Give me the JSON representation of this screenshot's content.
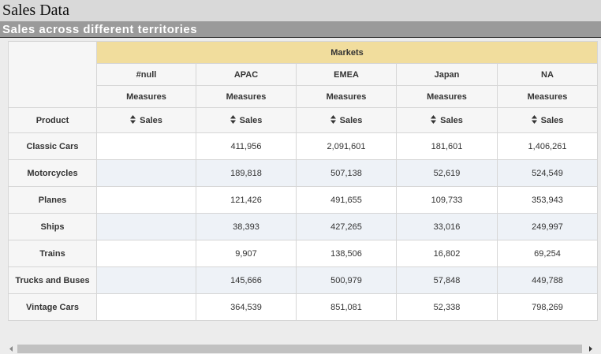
{
  "header": {
    "title": "Sales Data",
    "subtitle": "Sales across different territories"
  },
  "table": {
    "group_label": "Markets",
    "columns": [
      "#null",
      "APAC",
      "EMEA",
      "Japan",
      "NA"
    ],
    "measures_label": "Measures",
    "row_header": "Product",
    "measure": "Sales",
    "rows": [
      {
        "product": "Classic Cars",
        "values": [
          null,
          "411,956",
          "2,091,601",
          "181,601",
          "1,406,261"
        ]
      },
      {
        "product": "Motorcycles",
        "values": [
          null,
          "189,818",
          "507,138",
          "52,619",
          "524,549"
        ]
      },
      {
        "product": "Planes",
        "values": [
          null,
          "121,426",
          "491,655",
          "109,733",
          "353,943"
        ]
      },
      {
        "product": "Ships",
        "values": [
          null,
          "38,393",
          "427,265",
          "33,016",
          "249,997"
        ]
      },
      {
        "product": "Trains",
        "values": [
          null,
          "9,907",
          "138,506",
          "16,802",
          "69,254"
        ]
      },
      {
        "product": "Trucks and Buses",
        "values": [
          null,
          "145,666",
          "500,979",
          "57,848",
          "449,788"
        ]
      },
      {
        "product": "Vintage Cars",
        "values": [
          null,
          "364,539",
          "851,081",
          "52,338",
          "798,269"
        ]
      }
    ]
  }
}
